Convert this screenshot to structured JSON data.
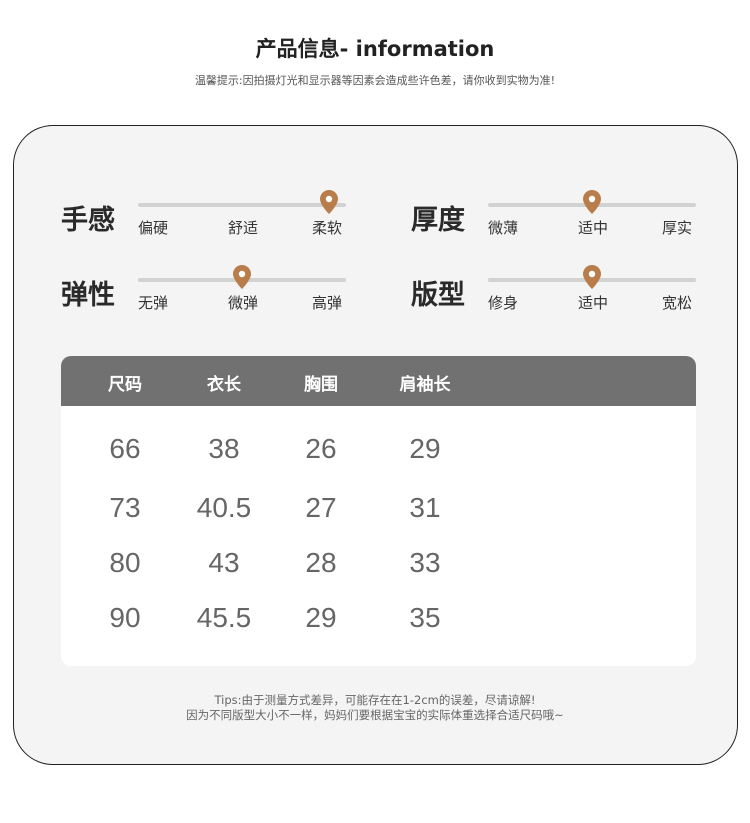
{
  "header": {
    "title": "产品信息- information",
    "notice": "温馨提示:因拍摄灯光和显示器等因素会造成些许色差，请你收到实物为准!"
  },
  "accent_color": "#b87d4b",
  "attributes": [
    {
      "name": "手感",
      "options": [
        "偏硬",
        "舒适",
        "柔软"
      ],
      "level": 0.92
    },
    {
      "name": "厚度",
      "options": [
        "微薄",
        "适中",
        "厚实"
      ],
      "level": 0.5
    },
    {
      "name": "弹性",
      "options": [
        "无弹",
        "微弹",
        "高弹"
      ],
      "level": 0.5
    },
    {
      "name": "版型",
      "options": [
        "修身",
        "适中",
        "宽松"
      ],
      "level": 0.5
    }
  ],
  "table": {
    "headers": [
      "尺码",
      "衣长",
      "胸围",
      "肩袖长"
    ],
    "rows": [
      [
        "66",
        "38",
        "26",
        "29"
      ],
      [
        "73",
        "40.5",
        "27",
        "31"
      ],
      [
        "80",
        "43",
        "28",
        "33"
      ],
      [
        "90",
        "45.5",
        "29",
        "35"
      ]
    ]
  },
  "tips": {
    "line1": "Tips:由于测量方式差异，可能存在在1-2cm的误差，尽请谅解!",
    "line2": "因为不同版型大小不一样，妈妈们要根据宝宝的实际体重选择合适尺码哦~"
  }
}
